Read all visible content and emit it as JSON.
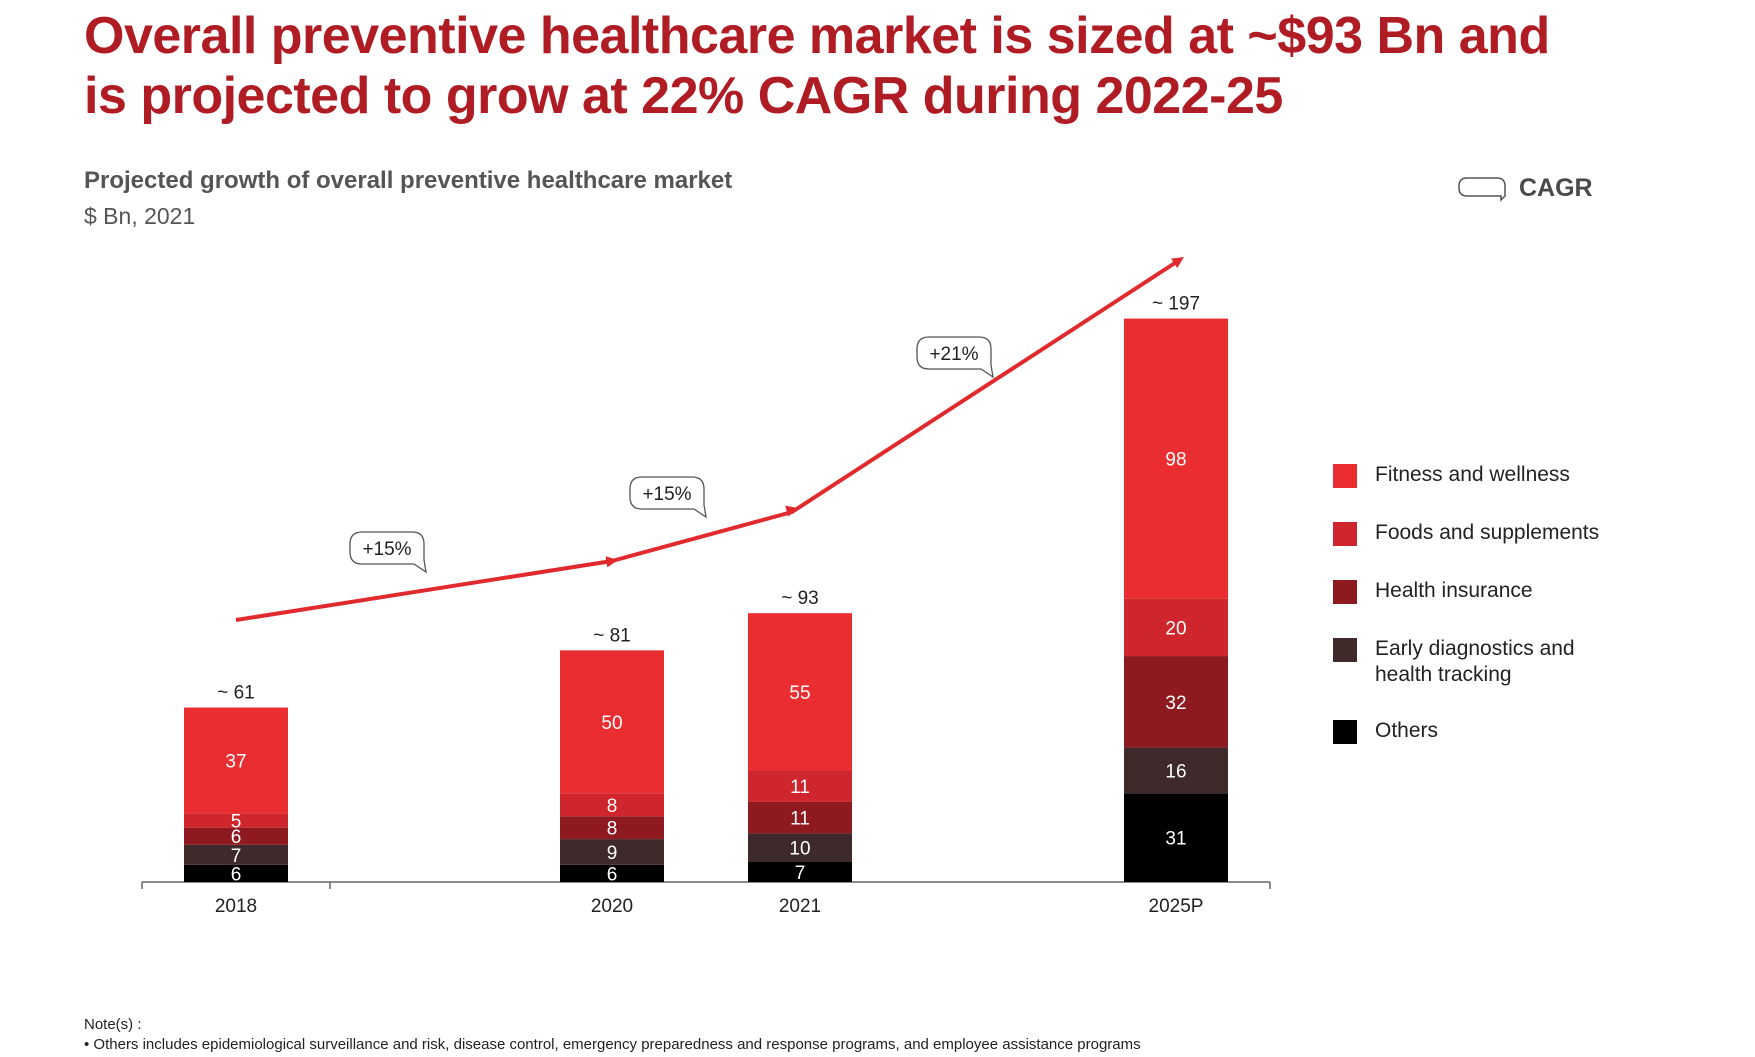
{
  "title": "Overall preventive healthcare market is sized at ~$93 Bn and is projected to grow at 22% CAGR during 2022-25",
  "chart_data": {
    "type": "bar",
    "stacked": true,
    "title": "Projected growth of overall preventive healthcare market",
    "subtitle": "$ Bn, 2021",
    "categories": [
      "2018",
      "2020",
      "2021",
      "2025P"
    ],
    "series": [
      {
        "name": "Others",
        "color": "#000000",
        "values": [
          6,
          6,
          7,
          31
        ]
      },
      {
        "name": "Early diagnostics and health tracking",
        "color": "#3e2a2a",
        "values": [
          7,
          9,
          10,
          16
        ]
      },
      {
        "name": "Health insurance",
        "color": "#8e1a20",
        "values": [
          6,
          8,
          11,
          32
        ]
      },
      {
        "name": "Foods and supplements",
        "color": "#cf252c",
        "values": [
          5,
          8,
          11,
          20
        ]
      },
      {
        "name": "Fitness and wellness",
        "color": "#ea2d30",
        "values": [
          37,
          50,
          55,
          98
        ]
      }
    ],
    "totals": [
      "~ 61",
      "~ 81",
      "~ 93",
      "~ 197"
    ],
    "cagr": [
      {
        "from": "2018",
        "to": "2020",
        "label": "+15%"
      },
      {
        "from": "2020",
        "to": "2021",
        "label": "+15%"
      },
      {
        "from": "2021",
        "to": "2025P",
        "label": "+21%"
      }
    ],
    "legend_key_label": "CAGR",
    "legend_position": "right",
    "trend_color": "#e02a2d",
    "grid": false
  },
  "notes": {
    "heading": "Note(s) :",
    "items": [
      "Others includes epidemiological surveillance and risk, disease control, emergency preparedness and response programs, and employee assistance programs"
    ]
  }
}
